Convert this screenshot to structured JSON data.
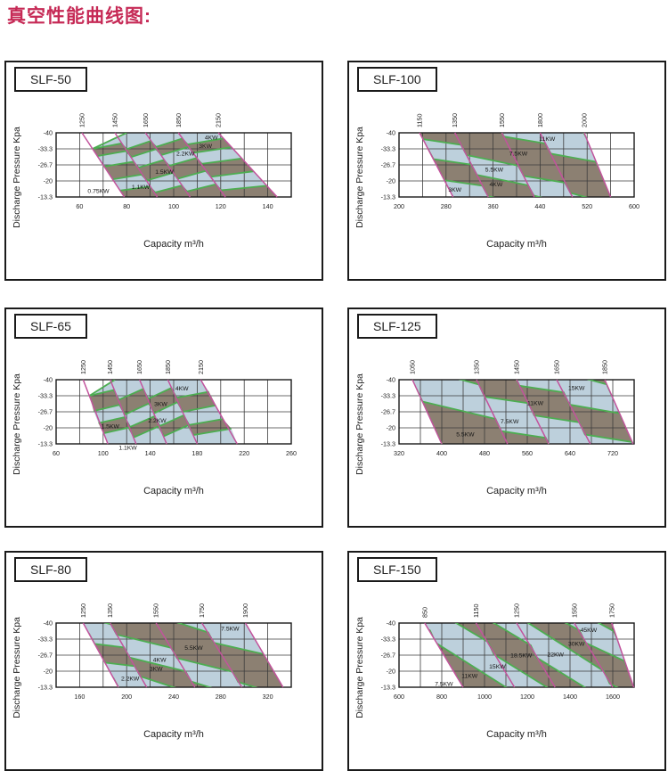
{
  "page": {
    "title": "真空性能曲线图:",
    "title_color": "#c62a56"
  },
  "colors": {
    "band_blue": "#bdd0dc",
    "band_gray": "#8c8072",
    "magenta": "#c2539c",
    "green": "#4dad51",
    "grid": "#3c3c3c",
    "frame": "#1a1a1a",
    "text": "#1f1f1f"
  },
  "axes": {
    "y_label": "Discharge Pressure Kpa",
    "x_label": "Capacity m³/h",
    "y_ticks": [
      "-40",
      "-33.3",
      "-26.7",
      "-20",
      "-13.3"
    ]
  },
  "chart_data": [
    {
      "type": "area",
      "model": "SLF-50",
      "mode": "bands",
      "amp": 0.18,
      "x_range": [
        50,
        150
      ],
      "grid_step": 10,
      "x_ticks": [
        60,
        80,
        100,
        120,
        140
      ],
      "speed_lines": [
        {
          "label": "1250",
          "t": 61,
          "b": 79
        },
        {
          "label": "1450",
          "t": 75,
          "b": 93
        },
        {
          "label": "1650",
          "t": 88,
          "b": 107
        },
        {
          "label": "1850",
          "t": 102,
          "b": 122
        },
        {
          "label": "2150",
          "t": 119,
          "b": 144
        }
      ],
      "boundaries": [
        {
          "pts": [
            [
              79,
              4
            ],
            [
              144,
              4
            ]
          ]
        },
        {
          "pts": [
            [
              77.2,
              3.6
            ],
            [
              139.6,
              3.3
            ]
          ],
          "green": true,
          "zz": true
        },
        {
          "pts": [
            [
              74,
              2.9
            ],
            [
              134,
              2.4
            ]
          ],
          "green": true,
          "zz": true
        },
        {
          "pts": [
            [
              70.4,
              2.1
            ],
            [
              129,
              1.6
            ]
          ],
          "green": true,
          "zz": true
        },
        {
          "pts": [
            [
              67.5,
              1.45
            ],
            [
              124.6,
              0.9
            ]
          ],
          "green": true,
          "zz": true
        },
        {
          "pts": [
            [
              65.5,
              1.0
            ],
            [
              121.2,
              0.35
            ]
          ],
          "green": true,
          "zz": true
        },
        {
          "pts": [
            [
              65.5,
              1.0
            ],
            [
              80,
              0
            ],
            [
              119,
              0
            ]
          ],
          "green": true,
          "gseg": 2
        }
      ],
      "band_colors": [
        "gray",
        "blue",
        "gray",
        "blue",
        "gray",
        "blue"
      ],
      "power_labels": [
        {
          "t": "0.75KW",
          "x": 68,
          "r": 3.62
        },
        {
          "t": "1.1KW",
          "x": 86,
          "r": 3.38
        },
        {
          "t": "1.5KW",
          "x": 96,
          "r": 2.42
        },
        {
          "t": "2.2KW",
          "x": 105,
          "r": 1.3
        },
        {
          "t": "3KW",
          "x": 113.5,
          "r": 0.82
        },
        {
          "t": "4KW",
          "x": 116,
          "r": 0.3
        }
      ]
    },
    {
      "type": "area",
      "model": "SLF-100",
      "mode": "stripes",
      "amp": 0.32,
      "dx": 75,
      "x_range": [
        200,
        600
      ],
      "grid_step": 40,
      "x_ticks": [
        200,
        280,
        360,
        440,
        520,
        600
      ],
      "speed_lines": [
        {
          "label": "1150",
          "t": 235,
          "b": 292
        },
        {
          "label": "1350",
          "t": 295,
          "b": 352
        },
        {
          "label": "1550",
          "t": 375,
          "b": 430
        },
        {
          "label": "1800",
          "t": 440,
          "b": 495
        },
        {
          "label": "2000",
          "t": 515,
          "b": 560
        }
      ],
      "stripe_entries": [
        75,
        155,
        230,
        380,
        500
      ],
      "stripe_colors": [
        "blue",
        "gray",
        "blue",
        "gray",
        "blue",
        "gray"
      ],
      "power_labels": [
        {
          "t": "3KW",
          "x": 295,
          "r": 3.55
        },
        {
          "t": "4KW",
          "x": 365,
          "r": 3.2
        },
        {
          "t": "5.5KW",
          "x": 362,
          "r": 2.3
        },
        {
          "t": "7.5KW",
          "x": 403,
          "r": 1.3
        },
        {
          "t": "11KW",
          "x": 452,
          "r": 0.38
        }
      ]
    },
    {
      "type": "area",
      "model": "SLF-65",
      "mode": "bands",
      "amp": 0.3,
      "x_range": [
        60,
        260
      ],
      "grid_step": 20,
      "x_ticks": [
        60,
        100,
        140,
        180,
        220,
        260
      ],
      "speed_lines": [
        {
          "label": "1250",
          "t": 83,
          "b": 104
        },
        {
          "label": "1450",
          "t": 106,
          "b": 128
        },
        {
          "label": "1650",
          "t": 131,
          "b": 154
        },
        {
          "label": "1850",
          "t": 155,
          "b": 180
        },
        {
          "label": "2150",
          "t": 183,
          "b": 214
        }
      ],
      "boundaries": [
        {
          "pts": [
            [
              104,
              4
            ],
            [
              214,
              4
            ]
          ]
        },
        {
          "pts": [
            [
              100,
              3.35
            ],
            [
              209,
              3.05
            ]
          ],
          "green": true,
          "zz": true
        },
        {
          "pts": [
            [
              96,
              2.7
            ],
            [
              202,
              2.45
            ]
          ],
          "green": true,
          "zz": true
        },
        {
          "pts": [
            [
              92,
              1.95
            ],
            [
              196,
              1.6
            ]
          ],
          "green": true,
          "zz": true
        },
        {
          "pts": [
            [
              88.3,
              1.0
            ],
            [
              190,
              0.75
            ]
          ],
          "green": true,
          "zz": true
        },
        {
          "pts": [
            [
              88.3,
              1.0
            ],
            [
              110,
              0
            ],
            [
              183,
              0
            ]
          ],
          "green": true,
          "gseg": 2
        }
      ],
      "band_colors": [
        "blue",
        "gray",
        "blue",
        "gray",
        "blue"
      ],
      "power_labels": [
        {
          "t": "1.1KW",
          "x": 121,
          "r": 4.22
        },
        {
          "t": "1.5KW",
          "x": 106,
          "r": 2.9
        },
        {
          "t": "2.2KW",
          "x": 146,
          "r": 2.55
        },
        {
          "t": "3KW",
          "x": 149,
          "r": 1.5
        },
        {
          "t": "4KW",
          "x": 167,
          "r": 0.55
        }
      ]
    },
    {
      "type": "area",
      "model": "SLF-125",
      "mode": "stripes",
      "amp": 0.38,
      "dx": 80,
      "x_range": [
        320,
        760
      ],
      "grid_step": 40,
      "x_ticks": [
        320,
        400,
        480,
        560,
        640,
        720
      ],
      "speed_lines": [
        {
          "label": "1050",
          "t": 345,
          "b": 400
        },
        {
          "label": "1350",
          "t": 465,
          "b": 523
        },
        {
          "label": "1450",
          "t": 540,
          "b": 600
        },
        {
          "label": "1650",
          "t": 615,
          "b": 678
        },
        {
          "label": "1850",
          "t": 705,
          "b": 758
        }
      ],
      "stripe_entries": [
        100,
        280,
        420,
        540,
        660
      ],
      "stripe_colors": [
        "blue",
        "gray",
        "blue",
        "gray",
        "blue",
        "gray"
      ],
      "power_labels": [
        {
          "t": "5.5KW",
          "x": 444,
          "r": 3.4
        },
        {
          "t": "7.5KW",
          "x": 527,
          "r": 2.6
        },
        {
          "t": "11KW",
          "x": 575,
          "r": 1.45
        },
        {
          "t": "15KW",
          "x": 652,
          "r": 0.5
        }
      ]
    },
    {
      "type": "area",
      "model": "SLF-80",
      "mode": "stripes",
      "amp": 0.32,
      "dx": 35,
      "x_range": [
        140,
        340
      ],
      "grid_step": 20,
      "x_ticks": [
        160,
        200,
        240,
        280,
        320
      ],
      "speed_lines": [
        {
          "label": "1250",
          "t": 163,
          "b": 193
        },
        {
          "label": "1350",
          "t": 186,
          "b": 217
        },
        {
          "label": "1550",
          "t": 225,
          "b": 258
        },
        {
          "label": "1750",
          "t": 264,
          "b": 298
        },
        {
          "label": "1900",
          "t": 301,
          "b": 333
        }
      ],
      "stripe_entries": [
        60,
        104,
        136,
        175,
        240
      ],
      "stripe_colors": [
        "gray",
        "blue",
        "gray",
        "blue",
        "gray",
        "blue"
      ],
      "power_labels": [
        {
          "t": "2.2KW",
          "x": 203,
          "r": 3.45
        },
        {
          "t": "3KW",
          "x": 225,
          "r": 2.85
        },
        {
          "t": "4KW",
          "x": 228,
          "r": 2.3
        },
        {
          "t": "5.5KW",
          "x": 257,
          "r": 1.55
        },
        {
          "t": "7.5KW",
          "x": 288,
          "r": 0.35
        }
      ]
    },
    {
      "type": "area",
      "model": "SLF-150",
      "mode": "stripes",
      "amp": 0.38,
      "dx": 110,
      "x_range": [
        600,
        1700
      ],
      "grid_step": 100,
      "x_ticks": [
        600,
        800,
        1000,
        1200,
        1400,
        1600
      ],
      "speed_lines": [
        {
          "label": "850",
          "t": 720,
          "b": 900
        },
        {
          "label": "1150",
          "t": 960,
          "b": 1140
        },
        {
          "label": "1250",
          "t": 1150,
          "b": 1330
        },
        {
          "label": "1550",
          "t": 1420,
          "b": 1600
        },
        {
          "label": "1750",
          "t": 1595,
          "b": 1698
        }
      ],
      "stripe_entries": [
        480,
        665,
        858,
        1035,
        1200,
        1365,
        1520
      ],
      "stripe_colors": [
        "blue",
        "gray",
        "blue",
        "gray",
        "blue",
        "gray",
        "blue",
        "gray"
      ],
      "power_labels": [
        {
          "t": "7.5KW",
          "x": 810,
          "r": 3.8
        },
        {
          "t": "11KW",
          "x": 930,
          "r": 3.3
        },
        {
          "t": "15KW",
          "x": 1060,
          "r": 2.7
        },
        {
          "t": "18.5KW",
          "x": 1172,
          "r": 2.0
        },
        {
          "t": "22KW",
          "x": 1332,
          "r": 1.95
        },
        {
          "t": "30KW",
          "x": 1430,
          "r": 1.3
        },
        {
          "t": "45KW",
          "x": 1487,
          "r": 0.42
        }
      ]
    }
  ]
}
